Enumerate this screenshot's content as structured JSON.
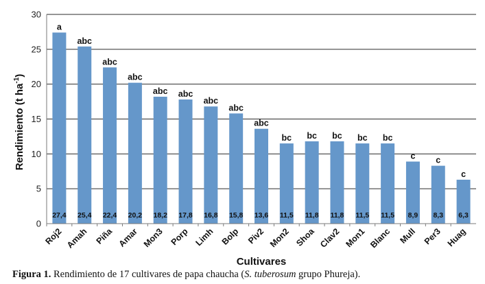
{
  "chart_data": {
    "type": "bar",
    "ylabel_main": "Rendimiento (t ha",
    "ylabel_sup": "-1",
    "ylabel_end": ")",
    "xlabel": "Cultivares",
    "ylim": [
      0,
      30
    ],
    "yticks": [
      0,
      5,
      10,
      15,
      20,
      25,
      30
    ],
    "grid": true,
    "bar_color": "#6597CA",
    "categories": [
      "Roj2",
      "Amah",
      "Piña",
      "Amar",
      "Mon3",
      "Porp",
      "Limh",
      "Bolp",
      "Piv2",
      "Mon2",
      "Shoa",
      "Clav2",
      "Mon1",
      "Blanc",
      "Mull",
      "Per3",
      "Huag"
    ],
    "values": [
      27.4,
      25.4,
      22.4,
      20.2,
      18.2,
      17.8,
      16.8,
      15.8,
      13.6,
      11.5,
      11.8,
      11.8,
      11.5,
      11.5,
      8.9,
      8.3,
      6.3
    ],
    "value_labels": [
      "27,4",
      "25,4",
      "22,4",
      "20,2",
      "18,2",
      "17,8",
      "16,8",
      "15,8",
      "13,6",
      "11,5",
      "11,8",
      "11,8",
      "11,5",
      "11,5",
      "8,9",
      "8,3",
      "6,3"
    ],
    "significance": [
      "a",
      "abc",
      "abc",
      "abc",
      "abc",
      "abc",
      "abc",
      "abc",
      "abc",
      "bc",
      "bc",
      "bc",
      "bc",
      "bc",
      "c",
      "c",
      "c"
    ]
  },
  "caption": {
    "label": "Figura 1.",
    "text_before": " Rendimiento de 17 cultivares de papa chaucha (",
    "species": "S. tuberosum",
    "text_after": " grupo Phureja)."
  }
}
